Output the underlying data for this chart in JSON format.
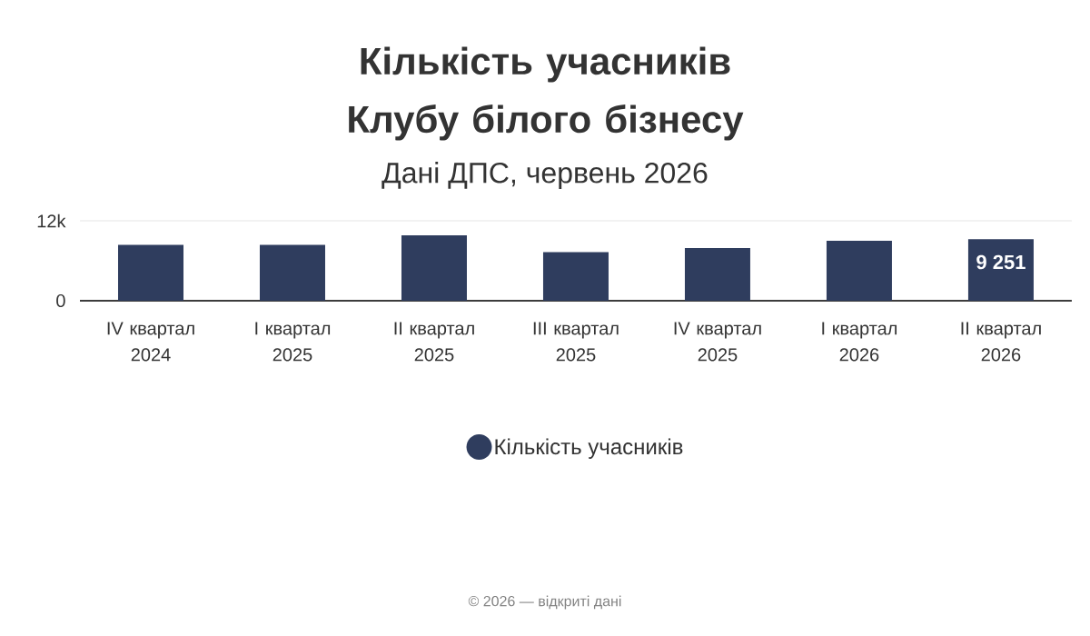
{
  "chart_data": {
    "type": "bar",
    "title": "Кількість учасників Клубу білого бізнесу",
    "subtitle": "Дані ДПС, червень 2026",
    "categories": [
      "IV квартал 2024",
      "I квартал 2025",
      "II квартал 2025",
      "III квартал 2025",
      "IV квартал 2025",
      "I квартал 2026",
      "II квартал 2026"
    ],
    "series": [
      {
        "name": "Кількість учасників",
        "color": "#2f3d5e",
        "values": [
          8400,
          8400,
          9800,
          7300,
          7900,
          9000,
          9251
        ],
        "value_labels": [
          null,
          null,
          null,
          null,
          null,
          null,
          "9 251"
        ]
      }
    ],
    "ylim": [
      0,
      12000
    ],
    "yticks": [
      0,
      {
        "value": 12000,
        "label": "12k"
      }
    ],
    "grid": "y",
    "legend": "bottom",
    "annotations": [
      "© 2026 — відкриті дані"
    ]
  }
}
